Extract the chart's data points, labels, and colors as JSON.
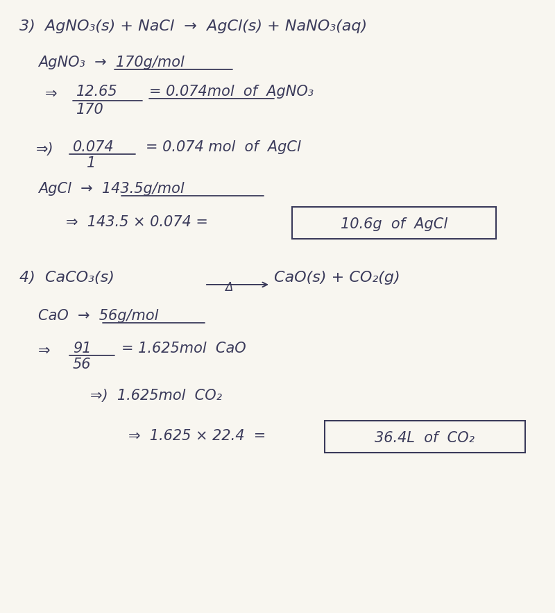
{
  "bg_color": "#f8f6f0",
  "text_color": "#2a2a3a",
  "ink_color": "#3a3a5a",
  "figsize": [
    8.0,
    8.83
  ],
  "dpi": 100,
  "s3": {
    "eq": "3)  AgNO₃(s) + NaCl  →  AgCl(s) + NaNO₃(aq)",
    "molar1": "AgNO₃  →  170g/mol",
    "arrow1": "⇒",
    "frac1_num": "12.65",
    "frac1_den": "170",
    "frac1_rest": "= 0.074mol  of  AgNO₃",
    "arrow2": "⇒)",
    "frac2_num": "0.074",
    "frac2_den": "1",
    "frac2_rest": "= 0.074 mol  of  AgCl",
    "molar2": "AgCl  →  143.5g/mol",
    "calc": "⇒  143.5 × 0.074 =",
    "box1": "10.6g  of  AgCl"
  },
  "s4": {
    "eq_left": "4)  CaCO₃(s)",
    "eq_delta": "Δ",
    "eq_right": "CaO(s) + CO₂(g)",
    "molar1": "CaO  →  56g/mol",
    "arrow1": "⇒",
    "frac1_num": "91",
    "frac1_den": "56",
    "frac1_rest": "= 1.625mol  CaO",
    "step2": "⇒)  1.625mol  CO₂",
    "calc": "⇒  1.625 × 22.4  =",
    "box2": "36.4L  of  CO₂"
  }
}
